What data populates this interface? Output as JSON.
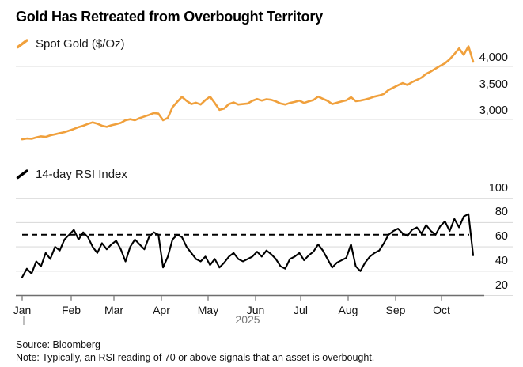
{
  "title": "Gold Has Retreated from Overbought Territory",
  "footer": {
    "source": "Source: Bloomberg",
    "note": "Note: Typically, an RSI reading of 70 or above signals that an asset is overbought."
  },
  "x_axis": {
    "months": [
      "Jan",
      "Feb",
      "Mar",
      "Apr",
      "May",
      "Jun",
      "Jul",
      "Aug",
      "Sep",
      "Oct"
    ],
    "year_label": "2025"
  },
  "colors": {
    "gold": "#F0A03C",
    "rsi": "#000000",
    "grid": "#DCDCDC",
    "axis": "#6E6E6E",
    "year_tick": "#9A9A9A",
    "muted_text": "#767676"
  },
  "chart_data": [
    {
      "type": "line",
      "name": "spot-gold",
      "legend_label": "Spot Gold ($/Oz)",
      "color": "#F0A03C",
      "x_start": "Jan 2025",
      "x_end": "late Oct 2025",
      "axis_side": "right",
      "grid": true,
      "y_ticks": [
        {
          "value": 3000,
          "label": "3,000"
        },
        {
          "value": 3500,
          "label": "3,500"
        },
        {
          "value": 4000,
          "label": "4,000"
        }
      ],
      "ylim": [
        2420,
        4500
      ],
      "values": [
        2625,
        2640,
        2635,
        2660,
        2680,
        2670,
        2700,
        2720,
        2740,
        2760,
        2790,
        2820,
        2855,
        2880,
        2915,
        2945,
        2920,
        2880,
        2860,
        2890,
        2910,
        2935,
        2985,
        3005,
        2985,
        3025,
        3055,
        3085,
        3120,
        3110,
        2985,
        3030,
        3230,
        3330,
        3425,
        3350,
        3290,
        3315,
        3280,
        3365,
        3430,
        3310,
        3180,
        3205,
        3290,
        3320,
        3280,
        3290,
        3300,
        3350,
        3385,
        3355,
        3380,
        3370,
        3340,
        3300,
        3280,
        3310,
        3330,
        3355,
        3310,
        3340,
        3365,
        3430,
        3390,
        3350,
        3290,
        3315,
        3340,
        3360,
        3420,
        3345,
        3355,
        3375,
        3400,
        3430,
        3450,
        3480,
        3555,
        3600,
        3645,
        3685,
        3650,
        3705,
        3745,
        3790,
        3860,
        3905,
        3960,
        4010,
        4060,
        4135,
        4235,
        4340,
        4220,
        4380,
        4090
      ]
    },
    {
      "type": "line",
      "name": "rsi",
      "legend_label": "14-day RSI Index",
      "color": "#000000",
      "x_start": "Jan 2025",
      "x_end": "late Oct 2025",
      "axis_side": "right",
      "grid": true,
      "overbought_level": 70,
      "overbought_line_style": "dashed",
      "y_ticks": [
        {
          "value": 20,
          "label": "20"
        },
        {
          "value": 40,
          "label": "40"
        },
        {
          "value": 60,
          "label": "60"
        },
        {
          "value": 80,
          "label": "80"
        },
        {
          "value": 100,
          "label": "100"
        }
      ],
      "ylim": [
        20,
        100
      ],
      "values": [
        35,
        42,
        38,
        48,
        44,
        55,
        50,
        60,
        57,
        66,
        70,
        74,
        66,
        72,
        68,
        60,
        55,
        63,
        58,
        62,
        65,
        58,
        48,
        60,
        66,
        62,
        58,
        68,
        72,
        70,
        43,
        52,
        66,
        70,
        68,
        60,
        55,
        50,
        48,
        52,
        45,
        50,
        43,
        47,
        52,
        55,
        50,
        48,
        50,
        52,
        56,
        52,
        57,
        54,
        50,
        44,
        42,
        50,
        52,
        55,
        49,
        53,
        56,
        62,
        57,
        50,
        43,
        47,
        49,
        51,
        62,
        44,
        40,
        47,
        52,
        55,
        57,
        63,
        70,
        73,
        75,
        71,
        69,
        74,
        76,
        71,
        78,
        73,
        70,
        77,
        81,
        73,
        83,
        76,
        85,
        87,
        53
      ]
    }
  ]
}
